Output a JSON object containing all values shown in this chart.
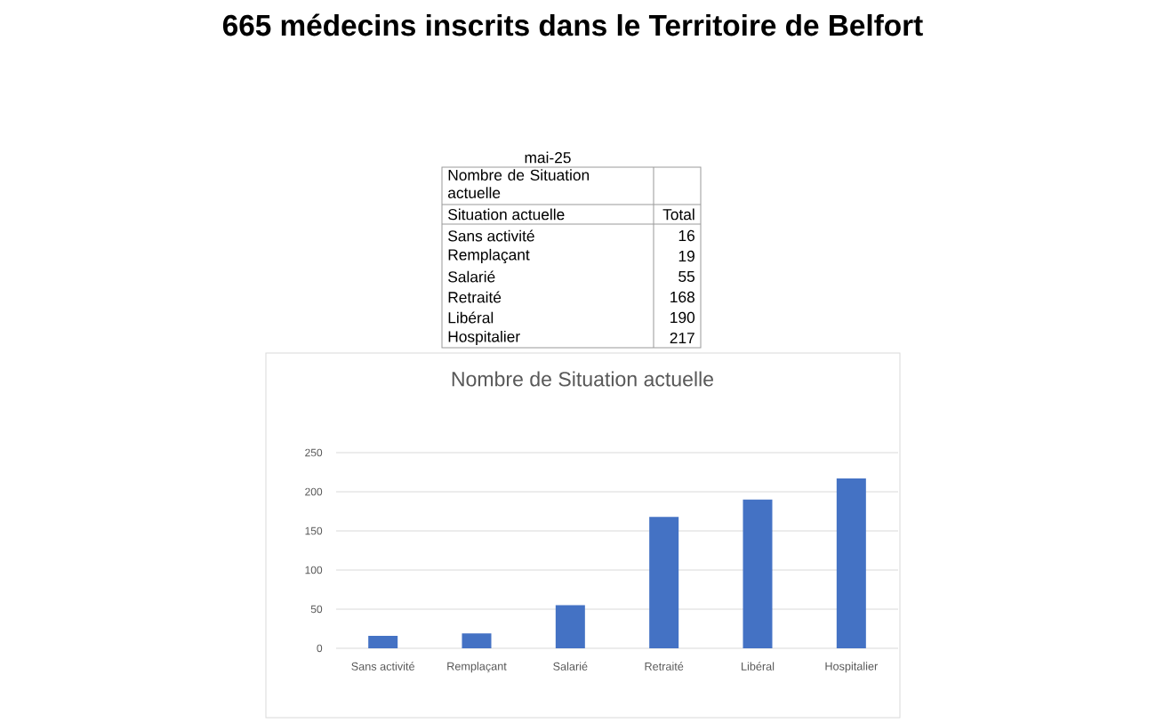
{
  "chart_data": {
    "type": "bar",
    "title": "665 médecins inscrits dans le Territoire de Belfort",
    "subtitle": "Nombre de Situation actuelle",
    "categories": [
      "Sans activité",
      "Remplaçant",
      "Salarié",
      "Retraité",
      "Libéral",
      "Hospitalier"
    ],
    "values": [
      16,
      19,
      55,
      168,
      190,
      217
    ],
    "color": "#4472c4",
    "ylim": [
      0,
      250
    ],
    "yticks": [
      0,
      50,
      100,
      150,
      200,
      250
    ],
    "grid": "y",
    "annotations": [
      "mai-25",
      "Nombre de Situation actuelle",
      "Situation actuelle",
      "Total",
      "16",
      "19",
      "55",
      "168",
      "190",
      "217"
    ]
  }
}
